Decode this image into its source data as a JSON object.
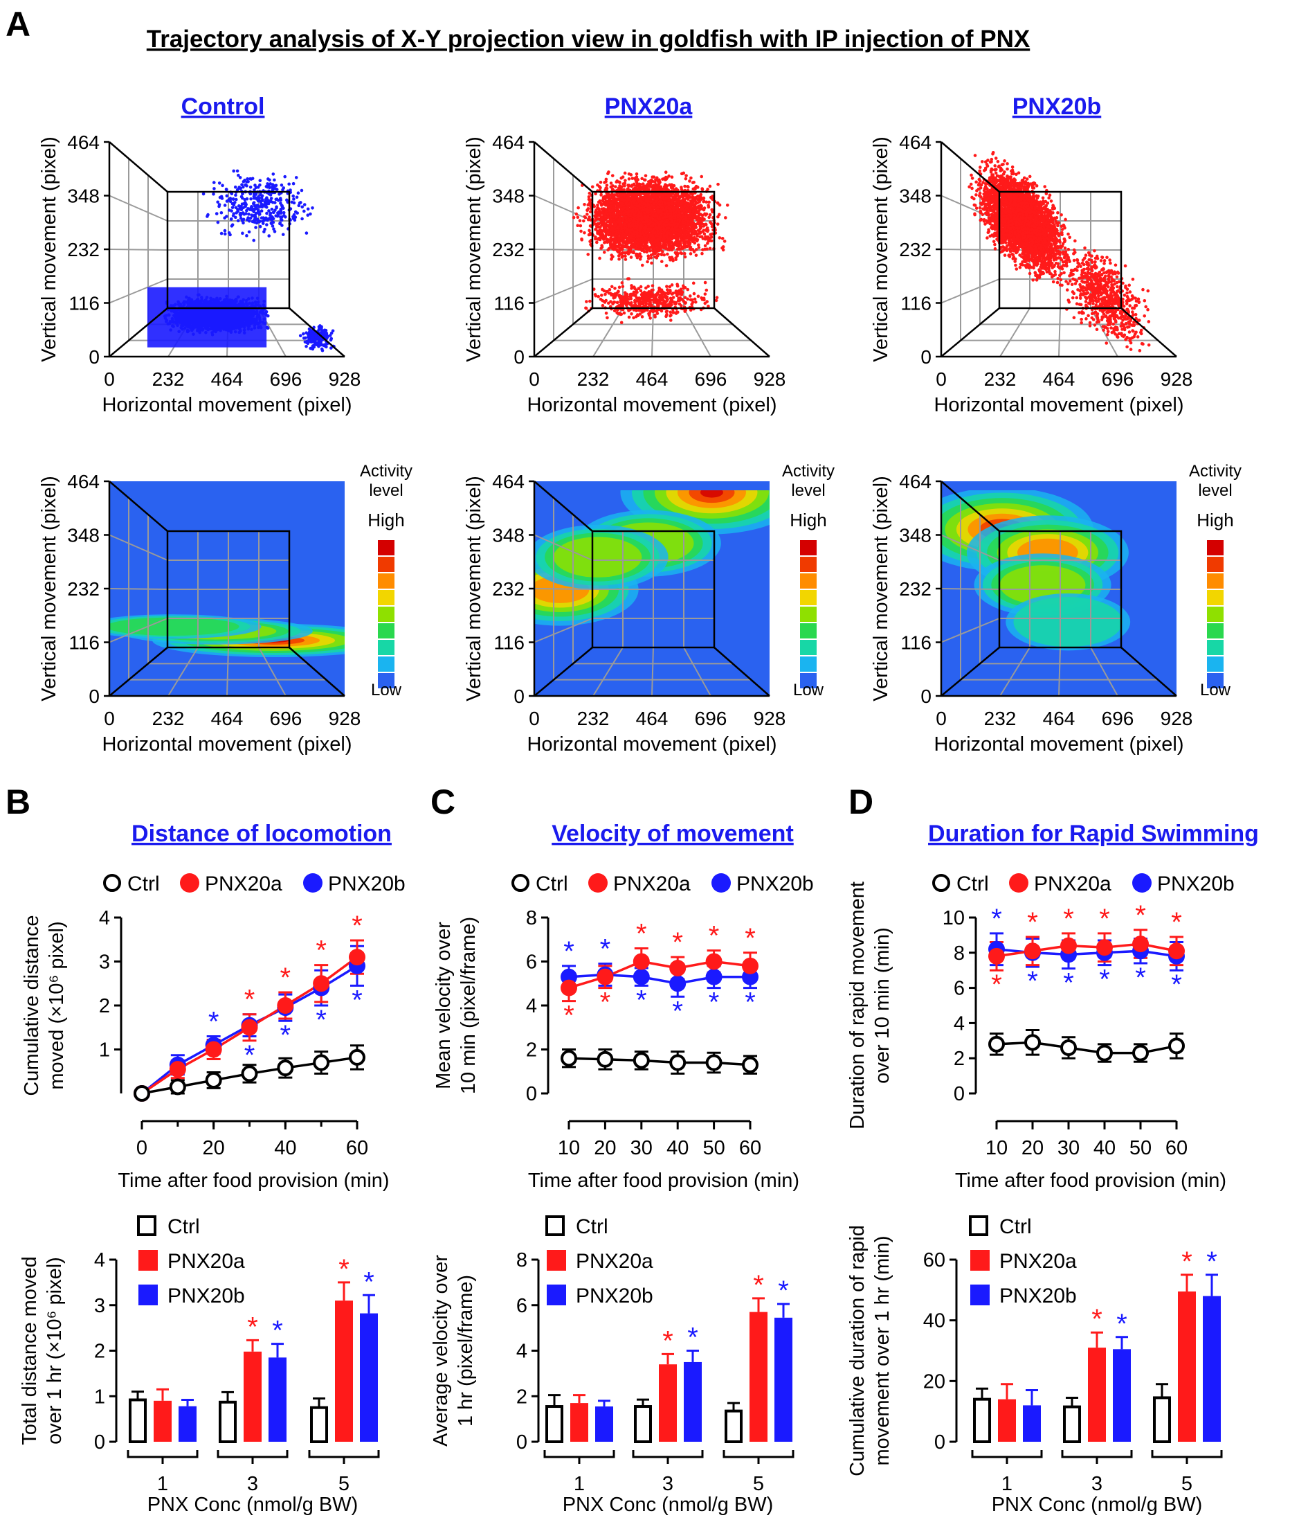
{
  "figure_title": "Trajectory analysis of X-Y projection view in goldfish with IP injection of PNX",
  "panel_labels": {
    "a": "A",
    "b": "B",
    "c": "C",
    "d": "D"
  },
  "colors": {
    "ctrl": "#000000",
    "pnx20a": "#ff1a1a",
    "pnx20b": "#1a1aff",
    "heading": "#1a1aee",
    "heat_bg": "#2a62f0"
  },
  "trajectory_axes": {
    "xlabel": "Horizontal movement (pixel)",
    "ylabel": "Vertical movement (pixel)",
    "xticks": [
      "0",
      "232",
      "464",
      "696",
      "928"
    ],
    "yticks": [
      "0",
      "116",
      "232",
      "348",
      "464"
    ],
    "xlim": [
      0,
      928
    ],
    "ylim": [
      0,
      464
    ]
  },
  "trajectory_groups": [
    {
      "name": "Control",
      "color": "#1a1aff",
      "hotspots": [
        {
          "x": 650,
          "y": 120,
          "level": 1.0
        },
        {
          "x": 420,
          "y": 140,
          "level": 0.55
        },
        {
          "x": 250,
          "y": 150,
          "level": 0.4
        }
      ]
    },
    {
      "name": "PNX20a",
      "color": "#ff1a1a",
      "hotspots": [
        {
          "x": 700,
          "y": 440,
          "level": 1.0
        },
        {
          "x": 100,
          "y": 230,
          "level": 0.7
        },
        {
          "x": 450,
          "y": 330,
          "level": 0.55
        },
        {
          "x": 250,
          "y": 300,
          "level": 0.5
        }
      ]
    },
    {
      "name": "PNX20b",
      "color": "#ff1a1a",
      "hotspots": [
        {
          "x": 240,
          "y": 360,
          "level": 1.0
        },
        {
          "x": 420,
          "y": 310,
          "level": 0.75
        },
        {
          "x": 400,
          "y": 240,
          "level": 0.45
        },
        {
          "x": 500,
          "y": 160,
          "level": 0.3
        }
      ]
    }
  ],
  "activity_legend": {
    "title_line1": "Activity",
    "title_line2": "level",
    "high": "High",
    "low": "Low",
    "colors": [
      "#d40000",
      "#f03a00",
      "#ff8c00",
      "#f2d600",
      "#8fe000",
      "#2ad84e",
      "#17d7a6",
      "#1ab4f0",
      "#2a62f0"
    ]
  },
  "legend_labels": {
    "ctrl": "Ctrl",
    "pnx20a": "PNX20a",
    "pnx20b": "PNX20b"
  },
  "sig_mark": "*",
  "chart_data": [
    {
      "id": "B-line",
      "type": "line",
      "title": "Distance of locomotion",
      "xlabel": "Time after food provision (min)",
      "ylabel_line1": "Cumulative distance",
      "ylabel_line2": "moved (×10⁶ pixel)",
      "x": [
        0,
        10,
        20,
        30,
        40,
        50,
        60
      ],
      "xticks": [
        "0",
        "20",
        "40",
        "60"
      ],
      "xlim": [
        0,
        60
      ],
      "ylim": [
        0,
        4
      ],
      "yticks": [
        "1",
        "2",
        "3",
        "4"
      ],
      "series": [
        {
          "name": "Ctrl",
          "values": [
            0,
            0.15,
            0.3,
            0.45,
            0.58,
            0.7,
            0.82
          ],
          "errors": [
            0,
            0.15,
            0.18,
            0.2,
            0.22,
            0.25,
            0.27
          ],
          "sig": [],
          "sig_side": "none"
        },
        {
          "name": "PNX20a",
          "values": [
            0,
            0.55,
            1.0,
            1.5,
            2.0,
            2.5,
            3.1
          ],
          "errors": [
            0,
            0.2,
            0.22,
            0.3,
            0.3,
            0.42,
            0.38
          ],
          "sig": [
            30,
            40,
            50,
            60
          ],
          "sig_side": "above"
        },
        {
          "name": "PNX20b",
          "values": [
            0,
            0.65,
            1.1,
            1.55,
            1.95,
            2.4,
            2.9
          ],
          "errors": [
            0,
            0.22,
            0.2,
            0.25,
            0.3,
            0.4,
            0.45
          ],
          "sig": [
            20,
            30,
            40,
            50,
            60
          ],
          "sig_side": "both"
        }
      ]
    },
    {
      "id": "C-line",
      "type": "line",
      "title": "Velocity of movement",
      "xlabel": "Time after food provision (min)",
      "ylabel_line1": "Mean velocity over",
      "ylabel_line2": "10 min (pixel/frame)",
      "x": [
        10,
        20,
        30,
        40,
        50,
        60
      ],
      "xticks": [
        "10",
        "20",
        "30",
        "40",
        "50",
        "60"
      ],
      "xlim": [
        10,
        60
      ],
      "ylim": [
        0,
        8
      ],
      "yticks": [
        "0",
        "2",
        "4",
        "6",
        "8"
      ],
      "series": [
        {
          "name": "Ctrl",
          "values": [
            1.6,
            1.55,
            1.5,
            1.4,
            1.4,
            1.3
          ],
          "errors": [
            0.4,
            0.45,
            0.4,
            0.5,
            0.45,
            0.4
          ],
          "sig": [],
          "sig_side": "none"
        },
        {
          "name": "PNX20a",
          "values": [
            4.8,
            5.3,
            6.0,
            5.7,
            6.0,
            5.8
          ],
          "errors": [
            0.6,
            0.5,
            0.6,
            0.5,
            0.5,
            0.6
          ],
          "sig": [
            10,
            20,
            30,
            40,
            50,
            60
          ],
          "sig_side": "alt_a"
        },
        {
          "name": "PNX20b",
          "values": [
            5.3,
            5.4,
            5.3,
            5.0,
            5.3,
            5.3
          ],
          "errors": [
            0.5,
            0.5,
            0.4,
            0.6,
            0.5,
            0.5
          ],
          "sig": [
            10,
            20,
            30,
            40,
            50,
            60
          ],
          "sig_side": "alt_b"
        }
      ]
    },
    {
      "id": "D-line",
      "type": "line",
      "title": "Duration for Rapid Swimming",
      "xlabel": "Time after food provision (min)",
      "ylabel_line1": "Duration of rapid movement",
      "ylabel_line2": "over 10 min (min)",
      "x": [
        10,
        20,
        30,
        40,
        50,
        60
      ],
      "xticks": [
        "10",
        "20",
        "30",
        "40",
        "50",
        "60"
      ],
      "xlim": [
        10,
        60
      ],
      "ylim": [
        0,
        10
      ],
      "yticks": [
        "0",
        "2",
        "4",
        "6",
        "8",
        "10"
      ],
      "series": [
        {
          "name": "Ctrl",
          "values": [
            2.8,
            2.9,
            2.6,
            2.3,
            2.3,
            2.7
          ],
          "errors": [
            0.6,
            0.7,
            0.6,
            0.5,
            0.5,
            0.7
          ],
          "sig": [],
          "sig_side": "none"
        },
        {
          "name": "PNX20a",
          "values": [
            7.8,
            8.1,
            8.4,
            8.3,
            8.5,
            8.1
          ],
          "errors": [
            0.8,
            0.8,
            0.7,
            0.8,
            0.8,
            0.8
          ],
          "sig": [
            10,
            20,
            30,
            40,
            50,
            60
          ],
          "sig_side": "alt_a"
        },
        {
          "name": "PNX20b",
          "values": [
            8.2,
            8.0,
            7.9,
            8.0,
            8.1,
            7.8
          ],
          "errors": [
            0.9,
            0.8,
            0.8,
            0.7,
            0.7,
            0.8
          ],
          "sig": [
            10,
            20,
            30,
            40,
            50,
            60
          ],
          "sig_side": "alt_b"
        }
      ]
    },
    {
      "id": "B-bar",
      "type": "bar",
      "xlabel": "PNX Conc (nmol/g BW)",
      "ylabel_line1": "Total distance moved",
      "ylabel_line2": "over 1 hr (×10⁶ pixel)",
      "categories": [
        "1",
        "3",
        "5"
      ],
      "ylim": [
        0,
        4
      ],
      "yticks": [
        "0",
        "1",
        "2",
        "3",
        "4"
      ],
      "series": [
        {
          "name": "Ctrl",
          "values": [
            0.92,
            0.87,
            0.75
          ],
          "errors": [
            0.18,
            0.22,
            0.2
          ],
          "sig": [
            false,
            false,
            false
          ]
        },
        {
          "name": "PNX20a",
          "values": [
            0.9,
            1.98,
            3.1
          ],
          "errors": [
            0.25,
            0.25,
            0.4
          ],
          "sig": [
            false,
            true,
            true
          ]
        },
        {
          "name": "PNX20b",
          "values": [
            0.78,
            1.85,
            2.82
          ],
          "errors": [
            0.14,
            0.3,
            0.4
          ],
          "sig": [
            false,
            true,
            true
          ]
        }
      ]
    },
    {
      "id": "C-bar",
      "type": "bar",
      "xlabel": "PNX Conc (nmol/g BW)",
      "ylabel_line1": "Average velocity over",
      "ylabel_line2": "1 hr (pixel/frame)",
      "categories": [
        "1",
        "3",
        "5"
      ],
      "ylim": [
        0,
        8
      ],
      "yticks": [
        "0",
        "2",
        "4",
        "6",
        "8"
      ],
      "series": [
        {
          "name": "Ctrl",
          "values": [
            1.55,
            1.55,
            1.35
          ],
          "errors": [
            0.5,
            0.3,
            0.35
          ],
          "sig": [
            false,
            false,
            false
          ]
        },
        {
          "name": "PNX20a",
          "values": [
            1.7,
            3.4,
            5.7
          ],
          "errors": [
            0.35,
            0.45,
            0.6
          ],
          "sig": [
            false,
            true,
            true
          ]
        },
        {
          "name": "PNX20b",
          "values": [
            1.55,
            3.5,
            5.45
          ],
          "errors": [
            0.25,
            0.5,
            0.6
          ],
          "sig": [
            false,
            true,
            true
          ]
        }
      ]
    },
    {
      "id": "D-bar",
      "type": "bar",
      "xlabel": "PNX Conc (nmol/g BW)",
      "ylabel_line1": "Cumulative duration of rapid",
      "ylabel_line2": "movement over 1 hr (min)",
      "categories": [
        "1",
        "3",
        "5"
      ],
      "ylim": [
        0,
        60
      ],
      "yticks": [
        "0",
        "20",
        "40",
        "60"
      ],
      "series": [
        {
          "name": "Ctrl",
          "values": [
            14,
            11.5,
            14.5
          ],
          "errors": [
            3.5,
            3,
            4.5
          ],
          "sig": [
            false,
            false,
            false
          ]
        },
        {
          "name": "PNX20a",
          "values": [
            14,
            31,
            49.5
          ],
          "errors": [
            5,
            5,
            5.5
          ],
          "sig": [
            false,
            true,
            true
          ]
        },
        {
          "name": "PNX20b",
          "values": [
            12,
            30.5,
            48
          ],
          "errors": [
            5,
            4,
            7
          ],
          "sig": [
            false,
            true,
            true
          ]
        }
      ]
    }
  ]
}
